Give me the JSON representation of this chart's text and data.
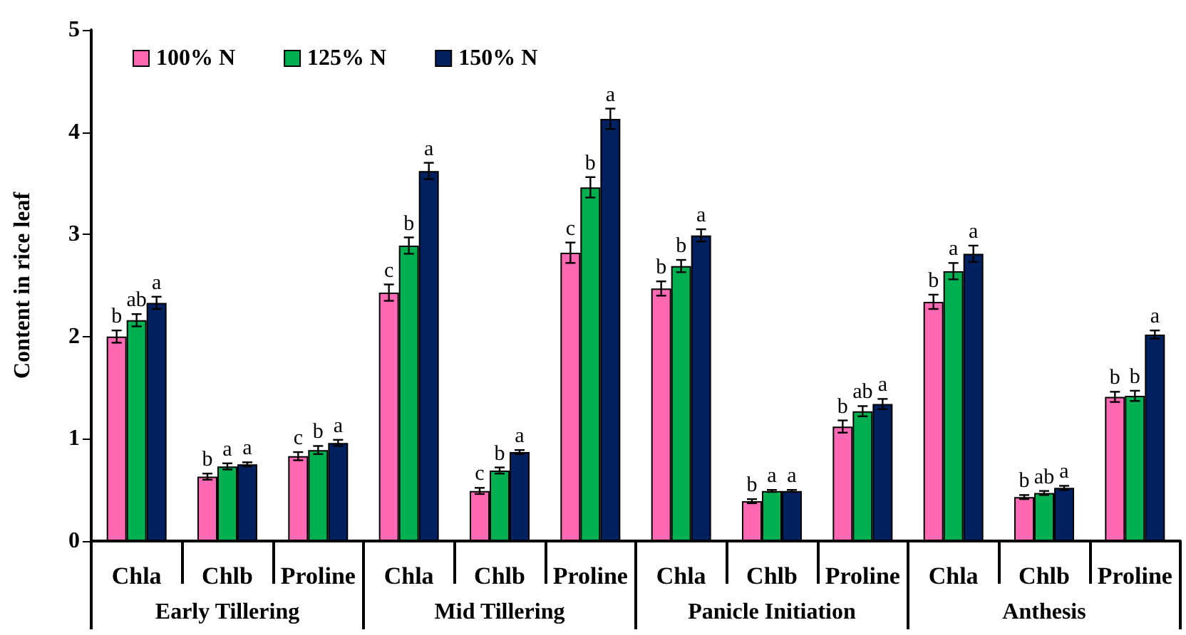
{
  "chart_data": {
    "type": "bar",
    "ylabel": "Content in rice leaf",
    "categories": [
      "Chla",
      "Chlb",
      "Proline",
      "Chla",
      "Chlb",
      "Proline",
      "Chla",
      "Chlb",
      "Proline",
      "Chla",
      "Chlb",
      "Proline"
    ],
    "annotations": [
      "Early Tillering",
      "Mid Tillering",
      "Panicle Initiation",
      "Anthesis"
    ],
    "series": [
      {
        "name": "100% N",
        "color": "#ff69b4",
        "values": [
          2.0,
          0.63,
          0.83,
          2.43,
          0.49,
          2.82,
          2.47,
          0.39,
          1.12,
          2.34,
          0.43,
          1.41
        ],
        "errors": [
          0.06,
          0.03,
          0.04,
          0.08,
          0.03,
          0.1,
          0.07,
          0.02,
          0.06,
          0.07,
          0.02,
          0.05
        ],
        "value_labels": [
          "b",
          "b",
          "c",
          "c",
          "c",
          "c",
          "b",
          "b",
          "b",
          "b",
          "b",
          "b"
        ]
      },
      {
        "name": "125% N",
        "color": "#00b050",
        "values": [
          2.16,
          0.73,
          0.89,
          2.89,
          0.69,
          3.46,
          2.69,
          0.49,
          1.27,
          2.64,
          0.47,
          1.42
        ],
        "errors": [
          0.06,
          0.03,
          0.04,
          0.08,
          0.03,
          0.1,
          0.06,
          0.01,
          0.05,
          0.08,
          0.02,
          0.05
        ],
        "value_labels": [
          "ab",
          "a",
          "b",
          "b",
          "b",
          "b",
          "b",
          "a",
          "ab",
          "a",
          "ab",
          "b"
        ]
      },
      {
        "name": "150% N",
        "color": "#002060",
        "values": [
          2.33,
          0.75,
          0.96,
          3.62,
          0.87,
          4.13,
          2.99,
          0.49,
          1.34,
          2.81,
          0.52,
          2.02
        ],
        "errors": [
          0.06,
          0.02,
          0.03,
          0.08,
          0.02,
          0.1,
          0.06,
          0.01,
          0.05,
          0.08,
          0.02,
          0.04
        ],
        "value_labels": [
          "a",
          "a",
          "a",
          "a",
          "a",
          "a",
          "a",
          "a",
          "a",
          "a",
          "a",
          "a"
        ]
      }
    ],
    "ylim": [
      0,
      5
    ],
    "yticks": [
      0,
      1,
      2,
      3,
      4,
      5
    ],
    "grid": false,
    "legend": "top left"
  }
}
